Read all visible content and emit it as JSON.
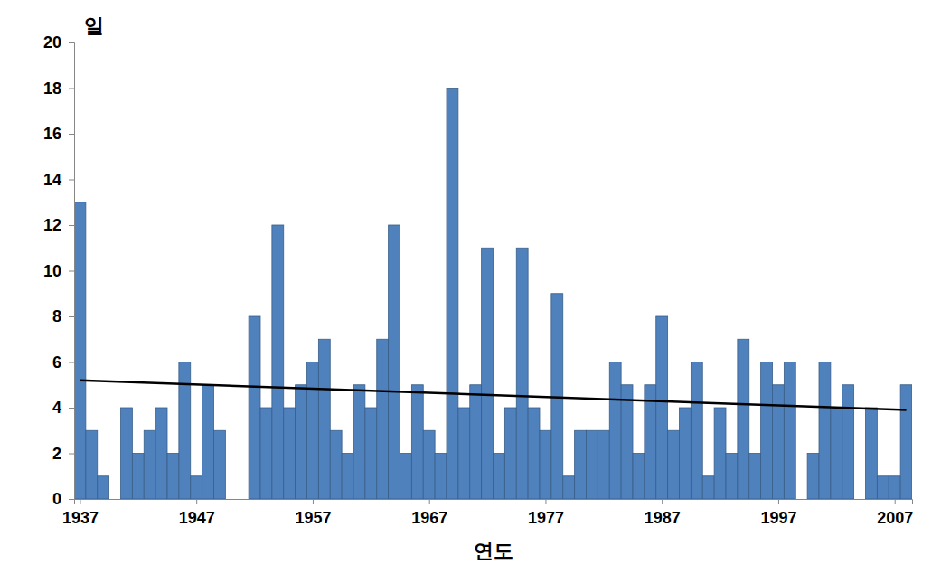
{
  "chart_data": {
    "type": "bar",
    "x_label": "연도",
    "y_label": "일",
    "x": [
      1937,
      1938,
      1939,
      1940,
      1941,
      1942,
      1943,
      1944,
      1945,
      1946,
      1947,
      1948,
      1949,
      1950,
      1951,
      1952,
      1953,
      1954,
      1955,
      1956,
      1957,
      1958,
      1959,
      1960,
      1961,
      1962,
      1963,
      1964,
      1965,
      1966,
      1967,
      1968,
      1969,
      1970,
      1971,
      1972,
      1973,
      1974,
      1975,
      1976,
      1977,
      1978,
      1979,
      1980,
      1981,
      1982,
      1983,
      1984,
      1985,
      1986,
      1987,
      1988,
      1989,
      1990,
      1991,
      1992,
      1993,
      1994,
      1995,
      1996,
      1997,
      1998,
      1999,
      2000,
      2001,
      2002,
      2003,
      2004,
      2005,
      2006,
      2007,
      2008
    ],
    "series": [
      {
        "color": "#4f81bd",
        "values": [
          13,
          3,
          1,
          0,
          4,
          2,
          3,
          4,
          2,
          6,
          1,
          5,
          3,
          0,
          0,
          8,
          4,
          12,
          4,
          5,
          6,
          7,
          3,
          2,
          5,
          4,
          7,
          12,
          2,
          5,
          3,
          2,
          18,
          4,
          5,
          11,
          2,
          4,
          11,
          4,
          3,
          9,
          1,
          3,
          3,
          3,
          6,
          5,
          2,
          5,
          8,
          3,
          4,
          6,
          1,
          4,
          2,
          7,
          2,
          6,
          5,
          6,
          0,
          2,
          6,
          4,
          5,
          0,
          4,
          1,
          1,
          5
        ]
      },
      {
        "type": "line",
        "color": "#000000",
        "x": [
          1937,
          2008
        ],
        "values": [
          5.2,
          3.9
        ]
      }
    ],
    "xlim": [
      1936.5,
      2008.5
    ],
    "xticks": [
      1937,
      1947,
      1957,
      1967,
      1977,
      1987,
      1997,
      2007
    ],
    "ylim": [
      0,
      20
    ],
    "yticks": [
      0,
      2,
      4,
      6,
      8,
      10,
      12,
      14,
      16,
      18,
      20
    ],
    "grid": false
  }
}
